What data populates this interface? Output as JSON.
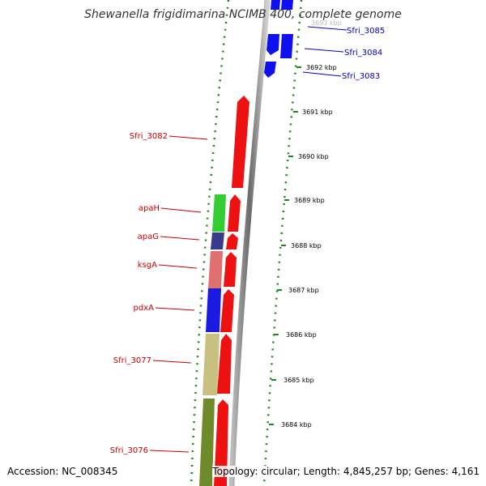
{
  "title": "Shewanella frigidimarina NCIMB 400, complete genome",
  "accession_text": "Accession: NC_008345",
  "stats_text": "Topology: circular; Length: 4,845,257 bp; Genes: 4,161",
  "ticks": [
    "3692 kbp",
    "3691 kbp",
    "3690 kbp",
    "3689 kbp",
    "3688 kbp",
    "3687 kbp",
    "3686 kbp",
    "3685 kbp",
    "3684 kbp"
  ],
  "top_partial_tick": "3693 kbp",
  "genes_right": [
    "Sfri_3085",
    "Sfri_3084",
    "Sfri_3083"
  ],
  "genes_left": [
    "Sfri_3082",
    "apaH",
    "apaG",
    "ksgA",
    "pdxA",
    "Sfri_3077",
    "Sfri_3076"
  ],
  "colors": {
    "forward_label": "#0000cc",
    "reverse_label": "#cc0000",
    "strand_forward": "#1010ee",
    "strand_reverse": "#ee1111",
    "apaH": "#33cc33",
    "apaG": "#3a3a8a",
    "ksgA": "#e07070",
    "pdxA": "#1a1ae0",
    "Sfri_3077": "#c8c080",
    "Sfri_3076": "#6f8a2a",
    "tick_green": "#1a8a1a"
  }
}
